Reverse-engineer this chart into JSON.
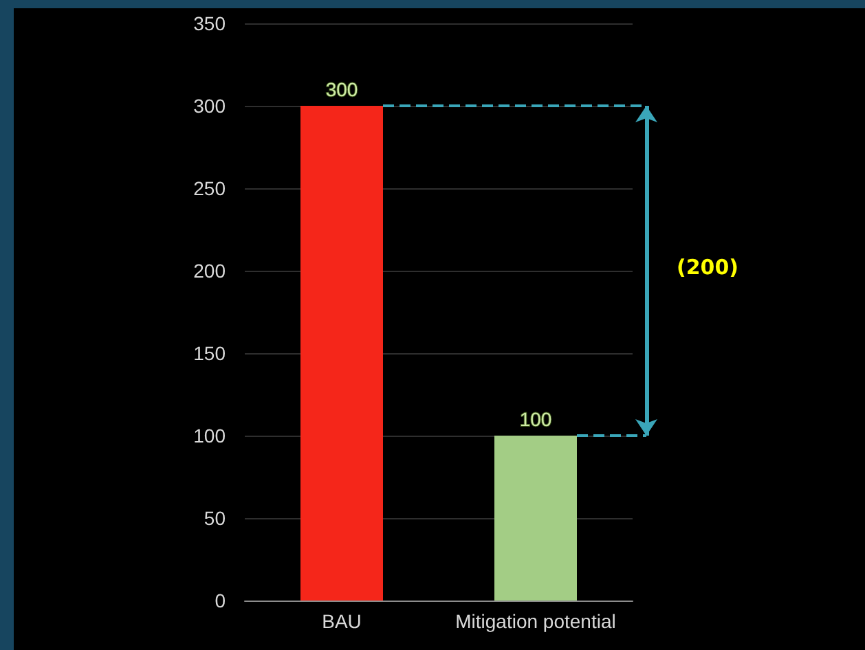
{
  "chart_data": {
    "type": "bar",
    "categories": [
      "BAU",
      "Mitigation potential"
    ],
    "values": [
      300,
      100
    ],
    "colors": [
      "#f5261a",
      "#a3cd85"
    ],
    "ylim": [
      0,
      350
    ],
    "yticks": [
      0,
      50,
      100,
      150,
      200,
      250,
      300,
      350
    ],
    "grid": "y",
    "data_labels": true,
    "ref_lines": [
      {
        "axis": "y",
        "value": 300,
        "color": "#3aa6b9",
        "line_style": "dashed"
      },
      {
        "axis": "y",
        "value": 100,
        "color": "#3aa6b9",
        "line_style": "dashed"
      }
    ],
    "annotations": [
      "(200)"
    ]
  }
}
